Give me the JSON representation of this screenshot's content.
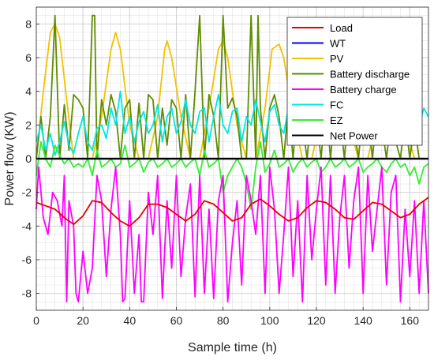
{
  "chart_data": {
    "type": "line",
    "title": "",
    "xlabel": "Sample time (h)",
    "ylabel": "Power flow (KW)",
    "xlim": [
      0,
      168
    ],
    "ylim": [
      -9,
      9
    ],
    "xticks": [
      "0",
      "20",
      "40",
      "60",
      "80",
      "100",
      "120",
      "140",
      "160"
    ],
    "yticks": [
      "-8",
      "-6",
      "-4",
      "-2",
      "0",
      "2",
      "4",
      "6",
      "8"
    ],
    "grid": true,
    "minor_grid": true,
    "legend_position": "top-right",
    "series": [
      {
        "name": "Load",
        "color": "#e60000",
        "x": [
          0,
          4,
          8,
          12,
          16,
          20,
          24,
          28,
          32,
          36,
          40,
          44,
          48,
          52,
          56,
          60,
          64,
          68,
          72,
          76,
          80,
          84,
          88,
          92,
          96,
          100,
          104,
          108,
          112,
          116,
          120,
          124,
          128,
          132,
          136,
          140,
          144,
          148,
          152,
          156,
          160,
          164,
          168
        ],
        "y": [
          -2.6,
          -2.8,
          -3.0,
          -3.5,
          -3.9,
          -3.4,
          -2.5,
          -2.6,
          -3.2,
          -3.7,
          -4.0,
          -3.5,
          -2.7,
          -2.7,
          -2.9,
          -3.3,
          -3.7,
          -3.3,
          -2.5,
          -2.7,
          -3.2,
          -3.7,
          -3.5,
          -2.7,
          -2.4,
          -2.8,
          -3.3,
          -3.7,
          -3.5,
          -2.9,
          -2.5,
          -2.6,
          -3.0,
          -3.5,
          -3.6,
          -3.1,
          -2.6,
          -2.7,
          -3.1,
          -3.5,
          -3.3,
          -2.7,
          -2.3
        ]
      },
      {
        "name": "WT",
        "color": "#0000ff",
        "x": [
          0,
          168
        ],
        "y": [
          0,
          0
        ]
      },
      {
        "name": "PV",
        "color": "#f2c200",
        "x": [
          0,
          3,
          6,
          8,
          10,
          13,
          16,
          20,
          24,
          28,
          32,
          34,
          36,
          40,
          44,
          48,
          52,
          55,
          56,
          58,
          62,
          66,
          70,
          74,
          78,
          80,
          82,
          86,
          90,
          94,
          98,
          101,
          104,
          106,
          110,
          114,
          118,
          122,
          126,
          128,
          130,
          134,
          138,
          142,
          146,
          150,
          152,
          154,
          158,
          162,
          166,
          168
        ],
        "y": [
          0,
          4.0,
          7.5,
          8.0,
          7.2,
          3.5,
          0,
          0,
          0,
          2.5,
          6.5,
          7.5,
          6.5,
          2.0,
          0,
          0,
          2.5,
          6.5,
          7.0,
          6.0,
          2.5,
          0,
          0,
          3.0,
          6.5,
          7.0,
          6.0,
          2.0,
          0,
          0,
          3.0,
          6.5,
          6.8,
          6.0,
          2.5,
          0,
          0,
          2.5,
          6.0,
          6.5,
          5.8,
          2.0,
          0,
          0,
          2.5,
          5.0,
          6.0,
          5.5,
          2.0,
          0,
          0,
          0
        ]
      },
      {
        "name": "Battery discharge",
        "color": "#5f8c00",
        "x": [
          0,
          2,
          4,
          6,
          8,
          10,
          12,
          14,
          16,
          18,
          20,
          22,
          24,
          25,
          26,
          28,
          30,
          32,
          34,
          36,
          38,
          40,
          42,
          44,
          46,
          48,
          50,
          52,
          54,
          56,
          58,
          60,
          62,
          64,
          66,
          68,
          70,
          72,
          74,
          76,
          78,
          80,
          82,
          84,
          86,
          88,
          90,
          92,
          94,
          95,
          96,
          98,
          100,
          102,
          104,
          106,
          108,
          110,
          112,
          114,
          116,
          118,
          120,
          122,
          124,
          126,
          128,
          130,
          132,
          134,
          136,
          138,
          140,
          142,
          144,
          146,
          148,
          150,
          152,
          154,
          156,
          158,
          160,
          162,
          164,
          166,
          168
        ],
        "y": [
          0,
          2.5,
          0,
          2.5,
          8.5,
          0,
          3.2,
          0.5,
          3.8,
          3.5,
          3.0,
          0,
          8.5,
          8.5,
          0,
          3.5,
          2.0,
          3.8,
          2.8,
          0,
          3.0,
          3.5,
          0,
          3.3,
          0,
          3.8,
          3.5,
          0,
          3.0,
          0.8,
          3.5,
          3.0,
          0,
          3.8,
          0,
          4.0,
          8.5,
          0,
          3.8,
          2.5,
          0,
          8.5,
          3.0,
          3.6,
          2.5,
          0,
          0,
          8.5,
          0,
          8.5,
          3.0,
          0,
          3.0,
          3.8,
          2.5,
          0,
          3.2,
          0,
          3.5,
          2.0,
          0,
          3.0,
          2.5,
          0,
          3.5,
          0,
          3.0,
          2.5,
          0,
          3.3,
          2.0,
          0,
          3.0,
          2.5,
          0,
          3.0,
          2.0,
          0,
          2.5,
          1.0,
          0,
          2.5,
          0,
          2.0,
          0,
          0,
          0
        ]
      },
      {
        "name": "Battery charge",
        "color": "#ff00ff",
        "x": [
          0,
          1,
          3,
          5,
          7,
          9,
          11,
          12,
          13,
          14,
          16,
          17,
          18,
          20,
          22,
          24,
          26,
          28,
          30,
          32,
          34,
          36,
          37,
          38,
          40,
          42,
          44,
          45,
          46,
          48,
          50,
          52,
          54,
          56,
          58,
          60,
          62,
          64,
          66,
          68,
          70,
          72,
          74,
          76,
          78,
          80,
          82,
          84,
          86,
          88,
          90,
          92,
          94,
          96,
          98,
          100,
          102,
          104,
          106,
          108,
          110,
          112,
          114,
          116,
          118,
          120,
          122,
          124,
          126,
          128,
          130,
          132,
          134,
          136,
          138,
          140,
          142,
          144,
          146,
          148,
          150,
          152,
          154,
          156,
          158,
          160,
          162,
          164,
          166,
          168
        ],
        "y": [
          -3.0,
          -0.5,
          -3.5,
          -4.5,
          -2.0,
          -2.5,
          -4.0,
          -1.0,
          -8.5,
          -2.5,
          -4.0,
          -8.0,
          -8.5,
          -5.5,
          -8.0,
          -6.5,
          -1.0,
          -2.5,
          -7.0,
          -3.0,
          -0.5,
          -4.5,
          -8.5,
          -8.3,
          -2.5,
          -8.0,
          -4.5,
          -8.5,
          -8.5,
          -2.0,
          -4.5,
          -1.0,
          -8.3,
          -2.5,
          -6.5,
          -1.0,
          -7.0,
          -3.5,
          -1.5,
          -8.2,
          -1.0,
          -8.0,
          -3.0,
          -8.3,
          -2.5,
          -1.0,
          -8.5,
          -5.0,
          -2.5,
          -7.5,
          -1.0,
          -2.5,
          -4.5,
          -1.0,
          -8.0,
          -0.5,
          -3.0,
          -8.0,
          -4.5,
          -0.5,
          -7.0,
          -2.5,
          -8.5,
          -1.0,
          -6.0,
          -3.0,
          -0.5,
          -7.5,
          -1.0,
          -8.0,
          -3.5,
          -1.0,
          -6.5,
          -2.5,
          -0.5,
          -8.0,
          -1.0,
          -5.5,
          -3.0,
          -0.5,
          -7.5,
          -2.0,
          -1.0,
          -8.5,
          -3.0,
          -7.0,
          -2.5,
          -8.0,
          -2.5,
          -8.0
        ]
      },
      {
        "name": "FC",
        "color": "#00e6e6",
        "x": [
          0,
          2,
          4,
          6,
          8,
          10,
          12,
          14,
          16,
          18,
          20,
          22,
          24,
          26,
          28,
          30,
          32,
          34,
          36,
          38,
          40,
          42,
          44,
          46,
          48,
          50,
          52,
          54,
          56,
          58,
          60,
          62,
          64,
          66,
          68,
          70,
          72,
          74,
          76,
          78,
          80,
          82,
          84,
          86,
          88,
          90,
          92,
          94,
          96,
          98,
          100,
          102,
          104,
          106,
          108,
          110,
          112,
          114,
          116,
          118,
          120,
          122,
          124,
          126,
          128,
          130,
          132,
          134,
          136,
          138,
          140,
          142,
          144,
          146,
          148,
          150,
          152,
          154,
          156,
          158,
          160,
          162,
          164,
          166,
          168
        ],
        "y": [
          1.0,
          2.0,
          0.5,
          1.5,
          0.2,
          1.0,
          2.2,
          0.8,
          0.3,
          1.5,
          2.5,
          1.0,
          0.5,
          1.8,
          2.0,
          1.2,
          3.0,
          2.0,
          4.0,
          1.5,
          2.5,
          1.0,
          2.2,
          2.8,
          1.5,
          2.0,
          3.2,
          1.0,
          2.5,
          3.0,
          1.5,
          2.2,
          3.5,
          2.0,
          1.5,
          2.8,
          3.0,
          1.0,
          2.5,
          3.8,
          2.0,
          1.5,
          2.8,
          3.0,
          1.0,
          2.5,
          2.0,
          3.5,
          2.2,
          1.0,
          2.8,
          3.2,
          2.0,
          1.5,
          3.0,
          2.5,
          1.0,
          2.8,
          2.0,
          1.5,
          3.0,
          2.2,
          1.0,
          2.5,
          3.0,
          1.8,
          2.5,
          1.0,
          2.8,
          3.0,
          1.5,
          2.2,
          3.0,
          1.0,
          2.5,
          3.0,
          2.0,
          1.5,
          3.2,
          2.5,
          1.0,
          2.8,
          2.0,
          3.0,
          2.5
        ]
      },
      {
        "name": "EZ",
        "color": "#33ee33",
        "x": [
          0,
          2,
          4,
          6,
          8,
          10,
          12,
          14,
          16,
          18,
          20,
          22,
          24,
          26,
          28,
          30,
          32,
          34,
          36,
          38,
          40,
          42,
          44,
          46,
          48,
          50,
          52,
          54,
          56,
          58,
          60,
          62,
          64,
          66,
          68,
          70,
          72,
          74,
          76,
          78,
          80,
          82,
          84,
          86,
          88,
          90,
          92,
          94,
          96,
          98,
          100,
          102,
          104,
          106,
          108,
          110,
          112,
          114,
          116,
          118,
          120,
          122,
          124,
          126,
          128,
          130,
          132,
          134,
          136,
          138,
          140,
          142,
          144,
          146,
          148,
          150,
          152,
          154,
          156,
          158,
          160,
          162,
          164,
          166,
          168
        ],
        "y": [
          -1.0,
          1.0,
          0.0,
          -0.5,
          0.8,
          0.2,
          -0.3,
          0.0,
          -0.5,
          -0.3,
          -0.5,
          0.0,
          -1.0,
          0.5,
          -0.5,
          -0.3,
          0.0,
          -0.5,
          -0.3,
          0.8,
          -0.5,
          -0.3,
          0.0,
          -0.8,
          -0.2,
          0.0,
          -0.5,
          -0.3,
          0.0,
          -0.5,
          -0.3,
          0.0,
          -0.5,
          -0.2,
          0.0,
          -1.0,
          0.5,
          -0.5,
          -0.3,
          0.0,
          -2.0,
          -1.0,
          -0.5,
          0.0,
          -0.5,
          -1.5,
          -3.0,
          -0.5,
          1.0,
          -0.8,
          -0.3,
          0.5,
          -0.5,
          -0.3,
          0.0,
          -0.8,
          -0.3,
          0.0,
          -0.5,
          -0.2,
          0.0,
          -0.8,
          -0.5,
          0.0,
          -0.5,
          -0.3,
          0.0,
          -0.5,
          -0.3,
          0.0,
          -0.8,
          -0.5,
          -0.3,
          0.0,
          -0.5,
          -0.8,
          -0.3,
          0.0,
          -0.5,
          -0.3,
          -1.0,
          -0.5,
          -1.5,
          -0.5,
          -0.3
        ]
      },
      {
        "name": "Net Power",
        "color": "#000000",
        "x": [
          0,
          168
        ],
        "y": [
          0,
          0
        ]
      }
    ]
  }
}
